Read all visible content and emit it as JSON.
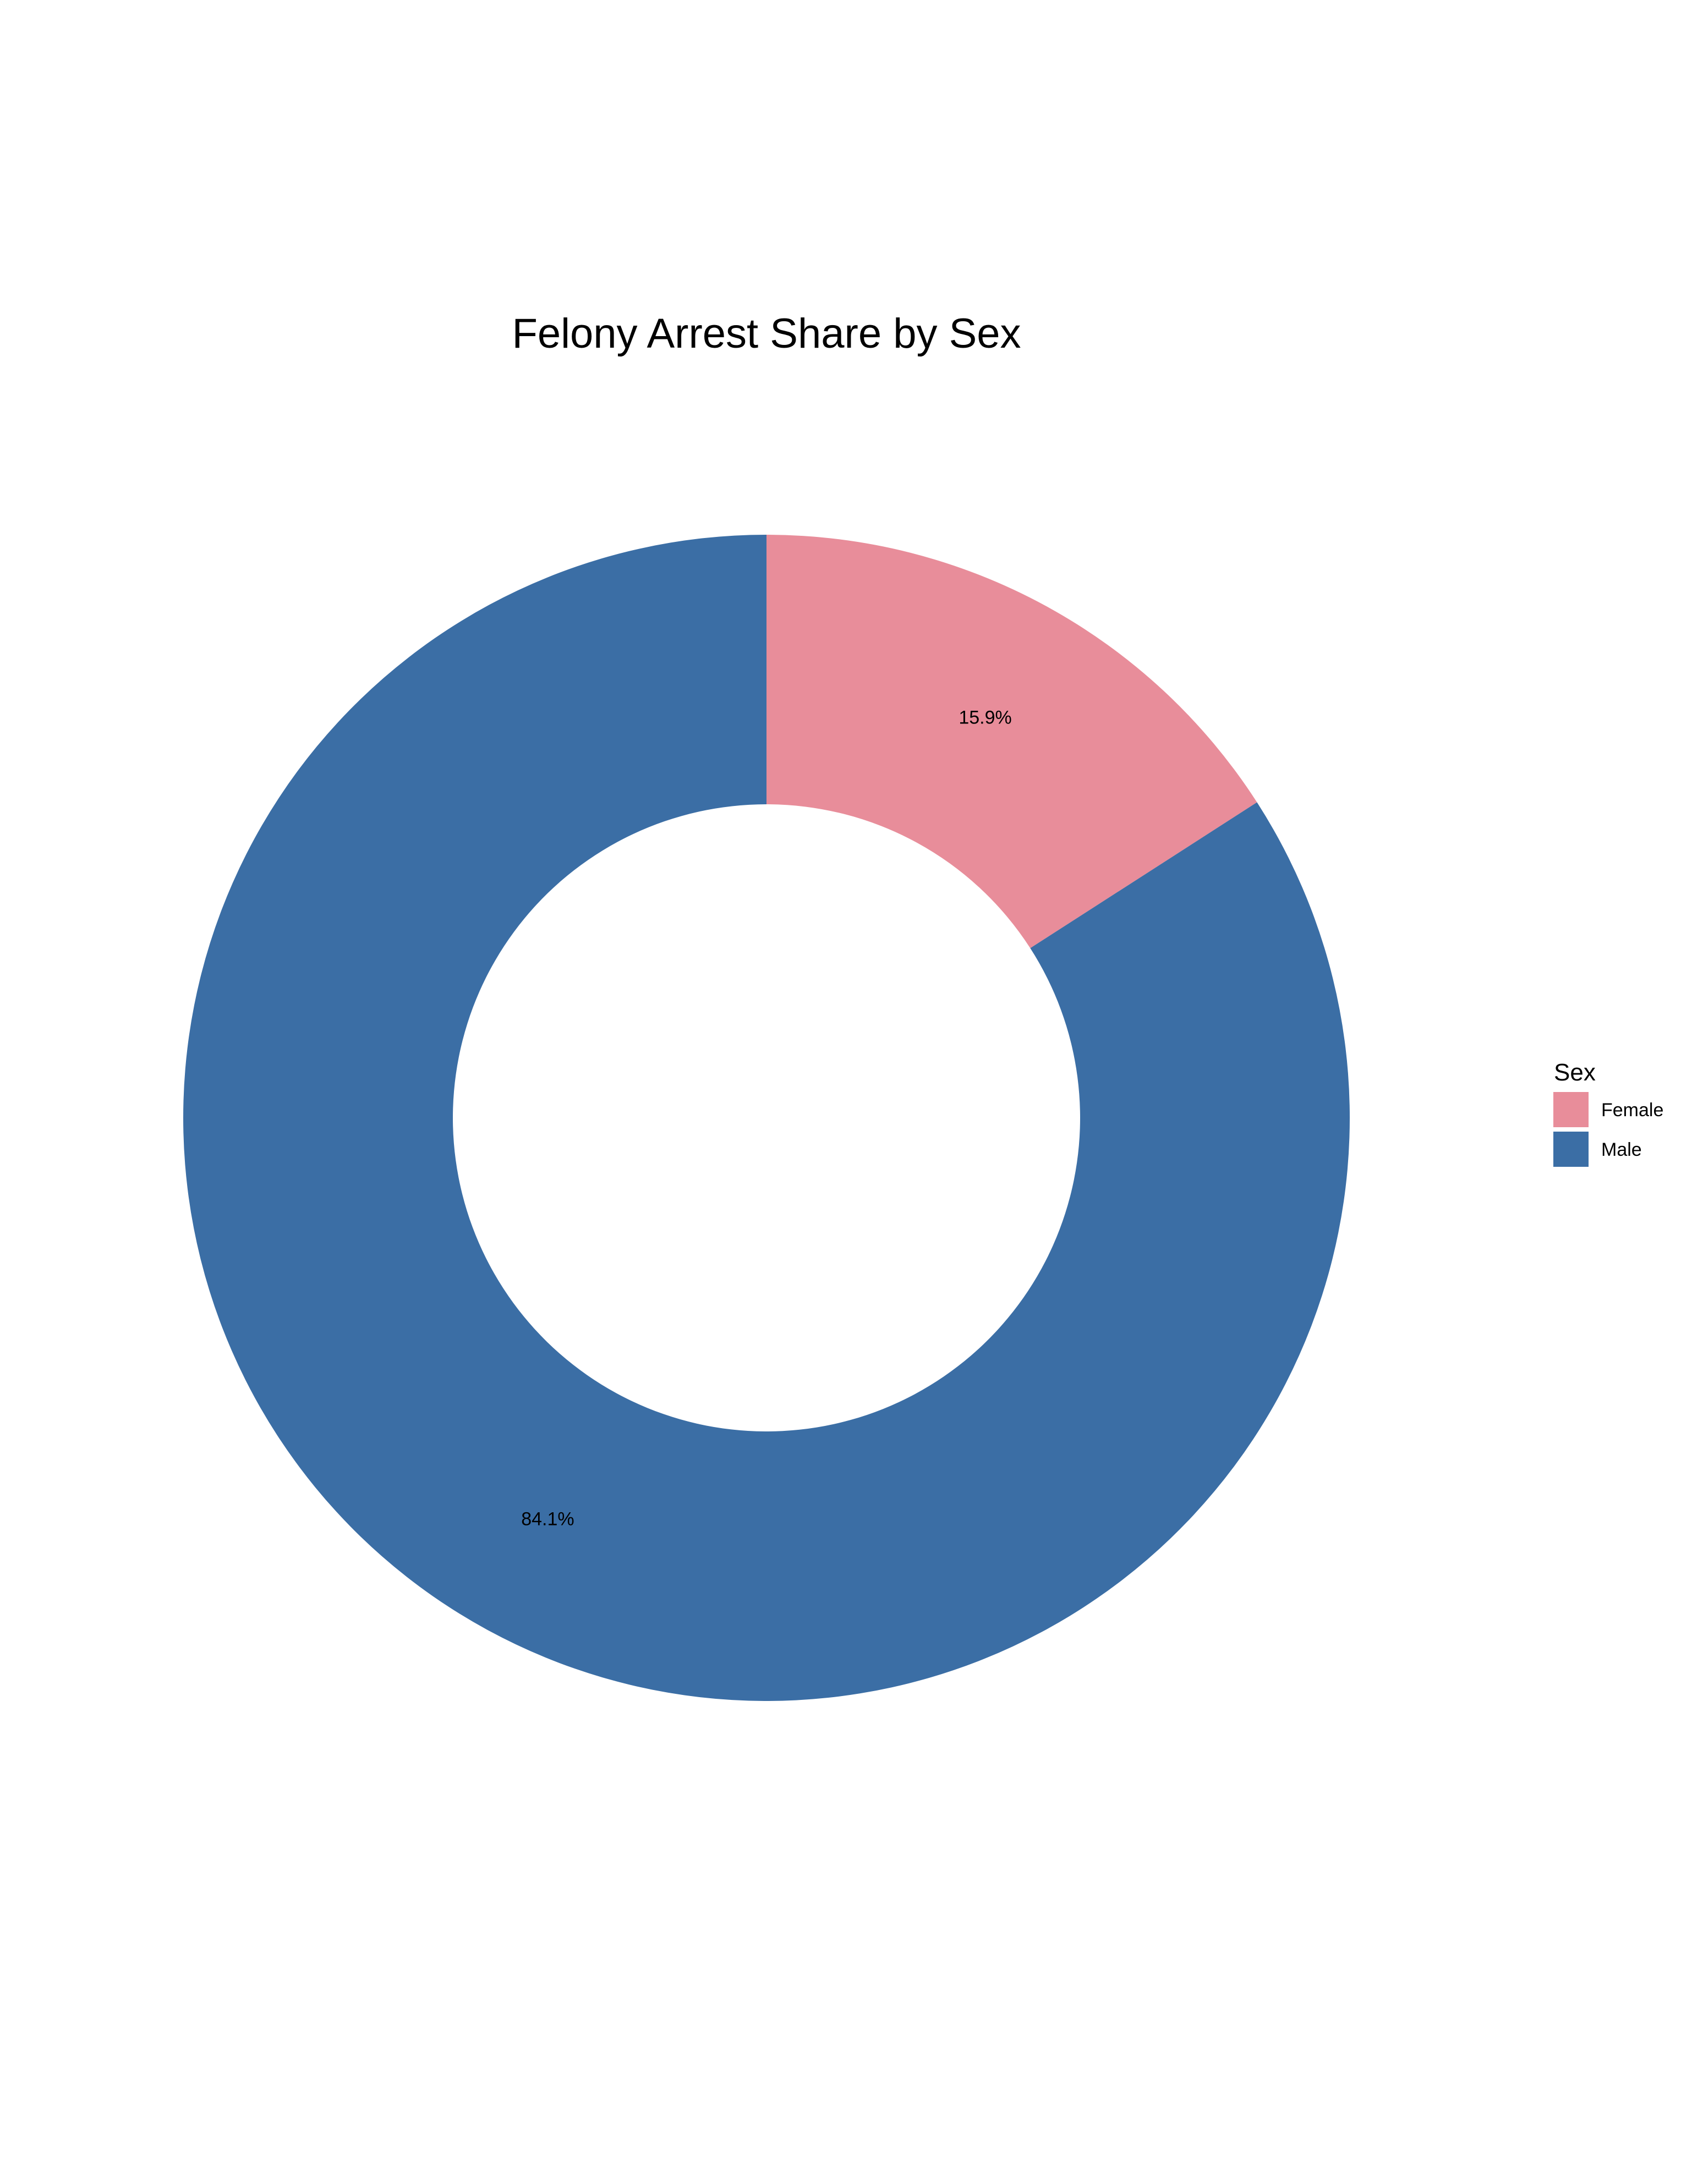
{
  "chart_data": {
    "type": "pie",
    "variant": "donut",
    "title": "Felony Arrest Share by Sex",
    "legend_title": "Sex",
    "legend_position": "right",
    "start_angle_deg": 0,
    "direction": "clockwise",
    "slices": [
      {
        "name": "Female",
        "value": 15.9,
        "label": "15.9%",
        "color": "#e88d9a"
      },
      {
        "name": "Male",
        "value": 84.1,
        "label": "84.1%",
        "color": "#3b6ea5"
      }
    ]
  }
}
